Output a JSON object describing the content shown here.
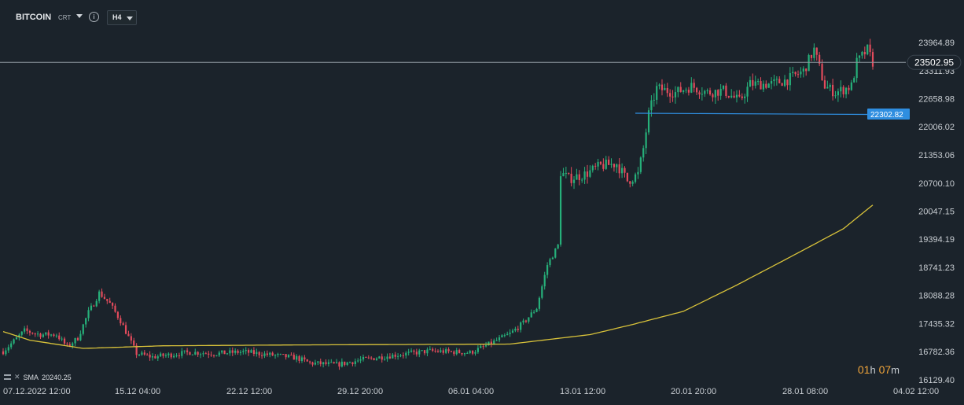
{
  "header": {
    "symbol": "BITCOIN",
    "chart_type": "CRT",
    "info_icon": "info-icon",
    "timeframe": "H4"
  },
  "sma_legend": {
    "label": "SMA",
    "value": "20240.25"
  },
  "countdown": {
    "hours": "01",
    "h_unit": "h",
    "minutes": "07",
    "m_unit": "m"
  },
  "colors": {
    "background": "#1b232b",
    "up": "#26b07a",
    "down": "#e24b5c",
    "sma": "#d8c23a",
    "hline": "#2f8ee0",
    "last_price_line": "#8b949c"
  },
  "chart_data": {
    "type": "candlestick",
    "y_ticks": [
      "23964.89",
      "23311.93",
      "22658.98",
      "22006.02",
      "21353.06",
      "20700.10",
      "20047.15",
      "19394.19",
      "18741.23",
      "18088.28",
      "17435.32",
      "16782.36",
      "16129.40"
    ],
    "x_ticks": [
      "07.12.2022 12:00",
      "15.12 04:00",
      "22.12 12:00",
      "29.12 20:00",
      "06.01 04:00",
      "13.01 12:00",
      "20.01 20:00",
      "28.01 08:00",
      "04.02 12:00"
    ],
    "ylim": [
      16129.4,
      24200
    ],
    "last_price": 23502.95,
    "horizontal_line": 22302.82,
    "sma_label": "SMA 20240.25",
    "grid": false,
    "anchors": [
      [
        0,
        16790
      ],
      [
        8,
        17270
      ],
      [
        14,
        17180
      ],
      [
        20,
        17180
      ],
      [
        24,
        16900
      ],
      [
        28,
        17100
      ],
      [
        32,
        17700
      ],
      [
        34,
        17900
      ],
      [
        36,
        18150
      ],
      [
        40,
        17900
      ],
      [
        44,
        17500
      ],
      [
        50,
        16740
      ],
      [
        56,
        16660
      ],
      [
        60,
        16690
      ],
      [
        70,
        16770
      ],
      [
        80,
        16740
      ],
      [
        90,
        16780
      ],
      [
        100,
        16710
      ],
      [
        110,
        16640
      ],
      [
        115,
        16520
      ],
      [
        125,
        16480
      ],
      [
        135,
        16600
      ],
      [
        145,
        16690
      ],
      [
        160,
        16800
      ],
      [
        175,
        16760
      ],
      [
        180,
        16890
      ],
      [
        190,
        17200
      ],
      [
        195,
        17450
      ],
      [
        200,
        17800
      ],
      [
        204,
        18800
      ],
      [
        208,
        19250
      ],
      [
        209,
        20950
      ],
      [
        212,
        20800
      ],
      [
        218,
        20900
      ],
      [
        224,
        21100
      ],
      [
        230,
        21150
      ],
      [
        234,
        20750
      ],
      [
        238,
        20900
      ],
      [
        240,
        21500
      ],
      [
        242,
        22300
      ],
      [
        245,
        22900
      ],
      [
        252,
        22800
      ],
      [
        258,
        22950
      ],
      [
        264,
        22800
      ],
      [
        270,
        22850
      ],
      [
        276,
        22600
      ],
      [
        280,
        23000
      ],
      [
        288,
        23000
      ],
      [
        294,
        23100
      ],
      [
        300,
        23300
      ],
      [
        304,
        23800
      ],
      [
        308,
        22950
      ],
      [
        312,
        22800
      ],
      [
        318,
        22950
      ],
      [
        320,
        23500
      ],
      [
        324,
        23800
      ],
      [
        326,
        23502.95
      ]
    ],
    "sma_anchors": [
      [
        0,
        17250
      ],
      [
        10,
        17050
      ],
      [
        30,
        16860
      ],
      [
        60,
        16920
      ],
      [
        110,
        16940
      ],
      [
        150,
        16950
      ],
      [
        190,
        16960
      ],
      [
        220,
        17180
      ],
      [
        235,
        17400
      ],
      [
        255,
        17720
      ],
      [
        275,
        18330
      ],
      [
        295,
        18980
      ],
      [
        315,
        19640
      ],
      [
        327,
        20240.25
      ]
    ]
  }
}
